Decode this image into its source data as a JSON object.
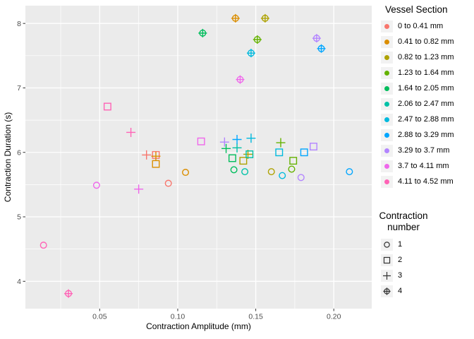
{
  "colors": {
    "panel_bg": "#EBEBEB",
    "grid": "#FFFFFF",
    "tick_text": "#4D4D4D",
    "tick_mark": "#333333",
    "axis_title_text": "#000000",
    "legend_key_bg": "#F2F2F2",
    "shape_glyph": "#333333"
  },
  "chart_data": {
    "type": "scatter",
    "title": "",
    "xlabel": "Contraction Amplitude (mm)",
    "ylabel": "Contraction Duration (s)",
    "xlim": [
      0.0024,
      0.2243
    ],
    "ylim": [
      3.576,
      8.276
    ],
    "grid": "on",
    "xticks": [
      0.05,
      0.1,
      0.15,
      0.2
    ],
    "xtick_labels": [
      "0.05",
      "0.10",
      "0.15",
      "0.20"
    ],
    "xticks_minor": [
      0.025,
      0.075,
      0.125,
      0.175
    ],
    "yticks": [
      4,
      5,
      6,
      7,
      8
    ],
    "ytick_labels": [
      "4",
      "5",
      "6",
      "7",
      "8"
    ],
    "yticks_minor": [
      4.5,
      5.5,
      6.5,
      7.5
    ],
    "color_legend": {
      "title": "Vessel Section",
      "position": "right",
      "entries": [
        {
          "label": "0 to 0.41 mm",
          "color": "#F8766D"
        },
        {
          "label": "0.41 to 0.82 mm",
          "color": "#DB8E00"
        },
        {
          "label": "0.82 to 1.23 mm",
          "color": "#AEA200"
        },
        {
          "label": "1.23 to 1.64 mm",
          "color": "#64B200"
        },
        {
          "label": "1.64 to 2.05 mm",
          "color": "#00BD5C"
        },
        {
          "label": "2.06 to 2.47 mm",
          "color": "#00C1A7"
        },
        {
          "label": "2.47 to 2.88 mm",
          "color": "#00BADE"
        },
        {
          "label": "2.88 to 3.29 mm",
          "color": "#00A6FF"
        },
        {
          "label": "3.29 to 3.7 mm",
          "color": "#B385FF"
        },
        {
          "label": "3.7 to 4.11 mm",
          "color": "#EF67EB"
        },
        {
          "label": "4.11 to 4.52 mm",
          "color": "#FF63B6"
        }
      ]
    },
    "shape_legend": {
      "title": "Contraction number",
      "position": "right",
      "entries": [
        {
          "label": "1",
          "shape": "circle"
        },
        {
          "label": "2",
          "shape": "square"
        },
        {
          "label": "3",
          "shape": "plus"
        },
        {
          "label": "4",
          "shape": "circle_plus"
        }
      ]
    },
    "series": [
      {
        "name": "0 to 0.41 mm",
        "color": "#F8766D",
        "points": [
          {
            "x": 0.08,
            "y": 5.96,
            "n": 3
          },
          {
            "x": 0.086,
            "y": 5.96,
            "n": 2
          },
          {
            "x": 0.094,
            "y": 5.52,
            "n": 1
          }
        ]
      },
      {
        "name": "0.41 to 0.82 mm",
        "color": "#DB8E00",
        "points": [
          {
            "x": 0.137,
            "y": 8.08,
            "n": 4
          },
          {
            "x": 0.086,
            "y": 5.94,
            "n": 3
          },
          {
            "x": 0.086,
            "y": 5.82,
            "n": 2
          },
          {
            "x": 0.105,
            "y": 5.69,
            "n": 1
          }
        ]
      },
      {
        "name": "0.82 to 1.23 mm",
        "color": "#AEA200",
        "points": [
          {
            "x": 0.156,
            "y": 8.08,
            "n": 4
          },
          {
            "x": 0.145,
            "y": 5.97,
            "n": 3
          },
          {
            "x": 0.142,
            "y": 5.87,
            "n": 2
          },
          {
            "x": 0.16,
            "y": 5.7,
            "n": 1
          }
        ]
      },
      {
        "name": "1.23 to 1.64 mm",
        "color": "#64B200",
        "points": [
          {
            "x": 0.151,
            "y": 7.75,
            "n": 4
          },
          {
            "x": 0.166,
            "y": 6.15,
            "n": 3
          },
          {
            "x": 0.174,
            "y": 5.87,
            "n": 2
          },
          {
            "x": 0.173,
            "y": 5.74,
            "n": 1
          }
        ]
      },
      {
        "name": "1.64 to 2.05 mm",
        "color": "#00BD5C",
        "points": [
          {
            "x": 0.116,
            "y": 7.85,
            "n": 4
          },
          {
            "x": 0.131,
            "y": 6.06,
            "n": 3
          },
          {
            "x": 0.135,
            "y": 5.91,
            "n": 2
          },
          {
            "x": 0.136,
            "y": 5.73,
            "n": 1
          }
        ]
      },
      {
        "name": "2.06 to 2.47 mm",
        "color": "#00C1A7",
        "points": [
          {
            "x": 0.138,
            "y": 6.07,
            "n": 3
          },
          {
            "x": 0.146,
            "y": 5.97,
            "n": 2
          },
          {
            "x": 0.143,
            "y": 5.7,
            "n": 1
          }
        ]
      },
      {
        "name": "2.47 to 2.88 mm",
        "color": "#00BADE",
        "points": [
          {
            "x": 0.147,
            "y": 7.54,
            "n": 4
          },
          {
            "x": 0.147,
            "y": 6.22,
            "n": 3
          },
          {
            "x": 0.165,
            "y": 6.0,
            "n": 2
          },
          {
            "x": 0.167,
            "y": 5.64,
            "n": 1
          }
        ]
      },
      {
        "name": "2.88 to 3.29 mm",
        "color": "#00A6FF",
        "points": [
          {
            "x": 0.192,
            "y": 7.61,
            "n": 4
          },
          {
            "x": 0.138,
            "y": 6.2,
            "n": 3
          },
          {
            "x": 0.181,
            "y": 6.0,
            "n": 2
          },
          {
            "x": 0.21,
            "y": 5.7,
            "n": 1
          }
        ]
      },
      {
        "name": "3.29 to 3.7 mm",
        "color": "#B385FF",
        "points": [
          {
            "x": 0.189,
            "y": 7.77,
            "n": 4
          },
          {
            "x": 0.13,
            "y": 6.16,
            "n": 3
          },
          {
            "x": 0.187,
            "y": 6.09,
            "n": 2
          },
          {
            "x": 0.179,
            "y": 5.61,
            "n": 1
          }
        ]
      },
      {
        "name": "3.7 to 4.11 mm",
        "color": "#EF67EB",
        "points": [
          {
            "x": 0.14,
            "y": 7.13,
            "n": 4
          },
          {
            "x": 0.075,
            "y": 5.43,
            "n": 3
          },
          {
            "x": 0.115,
            "y": 6.17,
            "n": 2
          },
          {
            "x": 0.048,
            "y": 5.49,
            "n": 1
          }
        ]
      },
      {
        "name": "4.11 to 4.52 mm",
        "color": "#FF63B6",
        "points": [
          {
            "x": 0.03,
            "y": 3.81,
            "n": 4
          },
          {
            "x": 0.07,
            "y": 6.31,
            "n": 3
          },
          {
            "x": 0.055,
            "y": 6.71,
            "n": 2
          },
          {
            "x": 0.014,
            "y": 4.56,
            "n": 1
          }
        ]
      }
    ]
  }
}
